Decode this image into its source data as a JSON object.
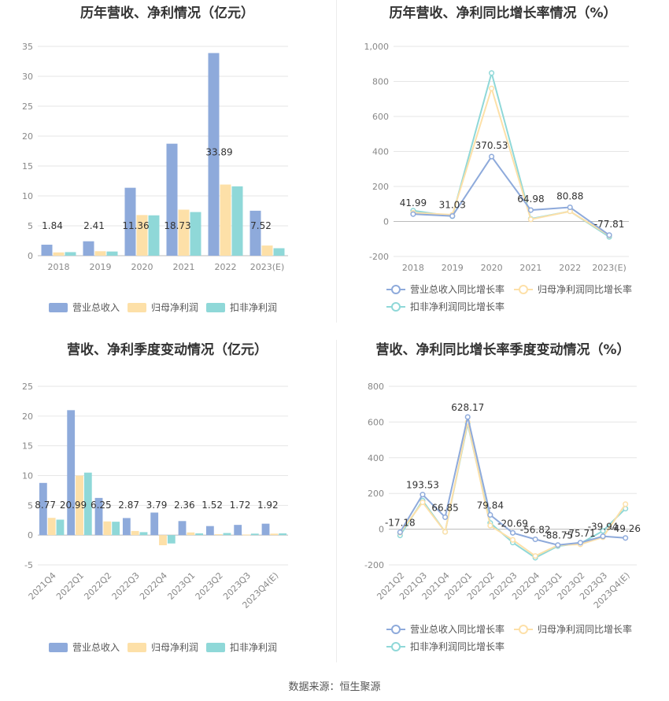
{
  "charts": [
    {
      "title": "历年营收、净利情况（亿元）",
      "chart_data": {
        "type": "bar",
        "categories": [
          "2018",
          "2019",
          "2020",
          "2021",
          "2022",
          "2023(E)"
        ],
        "ylim": [
          0,
          35
        ],
        "yticks": [
          0,
          5,
          10,
          15,
          20,
          25,
          30,
          35
        ],
        "series": [
          {
            "name": "营业总收入",
            "color": "#8eaadb",
            "values": [
              1.84,
              2.41,
              11.36,
              18.73,
              33.89,
              7.52
            ]
          },
          {
            "name": "归母净利润",
            "color": "#fde0a8",
            "values": [
              0.55,
              0.75,
              6.8,
              7.7,
              11.9,
              1.7
            ]
          },
          {
            "name": "扣非净利润",
            "color": "#8fd8d8",
            "values": [
              0.6,
              0.7,
              6.75,
              7.3,
              11.6,
              1.25
            ]
          }
        ],
        "data_labels": [
          "1.84",
          "2.41",
          "11.36",
          "18.73",
          "33.89",
          "7.52"
        ],
        "legend_position": "bottom",
        "grid": true
      }
    },
    {
      "title": "历年营收、净利同比增长率情况（%）",
      "chart_data": {
        "type": "line",
        "categories": [
          "2018",
          "2019",
          "2020",
          "2021",
          "2022",
          "2023(E)"
        ],
        "ylim": [
          -200,
          1000
        ],
        "yticks": [
          -200,
          0,
          200,
          400,
          600,
          800,
          1000
        ],
        "ytick_labels": [
          "-200",
          "0",
          "200",
          "400",
          "600",
          "800",
          "1,000"
        ],
        "series": [
          {
            "name": "营业总收入同比增长率",
            "color": "#8eaadb",
            "values": [
              41.99,
              31.03,
              370.53,
              64.98,
              80.88,
              -77.81
            ]
          },
          {
            "name": "归母净利润同比增长率",
            "color": "#fde0a8",
            "values": [
              50,
              38,
              760,
              12,
              58,
              -80
            ]
          },
          {
            "name": "扣非净利润同比增长率",
            "color": "#8fd8d8",
            "values": [
              62,
              30,
              848,
              15,
              58,
              -88
            ]
          }
        ],
        "data_labels": [
          "41.99",
          "31.03",
          "370.53",
          "64.98",
          "80.88",
          "-77.81"
        ],
        "legend_position": "bottom",
        "grid": true
      }
    },
    {
      "title": "营收、净利季度变动情况（亿元）",
      "chart_data": {
        "type": "bar",
        "categories": [
          "2021Q4",
          "2022Q1",
          "2022Q2",
          "2022Q3",
          "2022Q4",
          "2023Q1",
          "2023Q2",
          "2023Q3",
          "2023Q4(E)"
        ],
        "ylim": [
          -5,
          25
        ],
        "yticks": [
          -5,
          0,
          5,
          10,
          15,
          20,
          25
        ],
        "series": [
          {
            "name": "营业总收入",
            "color": "#8eaadb",
            "values": [
              8.77,
              20.99,
              6.25,
              2.87,
              3.79,
              2.36,
              1.52,
              1.72,
              1.92
            ]
          },
          {
            "name": "归母净利润",
            "color": "#fde0a8",
            "values": [
              2.9,
              10.0,
              2.3,
              0.7,
              -1.7,
              0.45,
              0.15,
              0.1,
              0.25
            ]
          },
          {
            "name": "扣非净利润",
            "color": "#8fd8d8",
            "values": [
              2.6,
              10.5,
              2.25,
              0.5,
              -1.4,
              0.3,
              0.35,
              0.25,
              0.3
            ]
          }
        ],
        "data_labels": [
          "8.77",
          "20.99",
          "6.25",
          "2.87",
          "3.79",
          "2.36",
          "1.52",
          "1.72",
          "1.92"
        ],
        "legend_position": "bottom",
        "grid": true
      }
    },
    {
      "title": "营收、净利同比增长率季度变动情况（%）",
      "chart_data": {
        "type": "line",
        "categories": [
          "2021Q2",
          "2021Q3",
          "2021Q4",
          "2022Q1",
          "2022Q2",
          "2022Q3",
          "2022Q4",
          "2023Q1",
          "2023Q2",
          "2023Q3",
          "2023Q4(E)"
        ],
        "ylim": [
          -200,
          800
        ],
        "yticks": [
          -200,
          0,
          200,
          400,
          600,
          800
        ],
        "series": [
          {
            "name": "营业总收入同比增长率",
            "color": "#8eaadb",
            "values": [
              -17.18,
              193.53,
              66.85,
              628.17,
              79.84,
              -20.69,
              -56.82,
              -88.75,
              -75.71,
              -39.94,
              -49.26
            ]
          },
          {
            "name": "归母净利润同比增长率",
            "color": "#fde0a8",
            "values": [
              -20,
              150,
              -15,
              600,
              20,
              -60,
              -150,
              -90,
              -85,
              -45,
              140
            ]
          },
          {
            "name": "扣非净利润同比增长率",
            "color": "#8fd8d8",
            "values": [
              -35,
              160,
              -15,
              590,
              35,
              -75,
              -160,
              -95,
              -80,
              -10,
              115
            ]
          }
        ],
        "data_labels": [
          "-17.18",
          "193.53",
          "66.85",
          "628.17",
          "79.84",
          "-20.69",
          "-56.82",
          "-88.75",
          "-75.71",
          "-39.94",
          "-49.26"
        ],
        "legend_position": "bottom",
        "grid": true
      }
    }
  ],
  "source_text": "数据来源：恒生聚源"
}
